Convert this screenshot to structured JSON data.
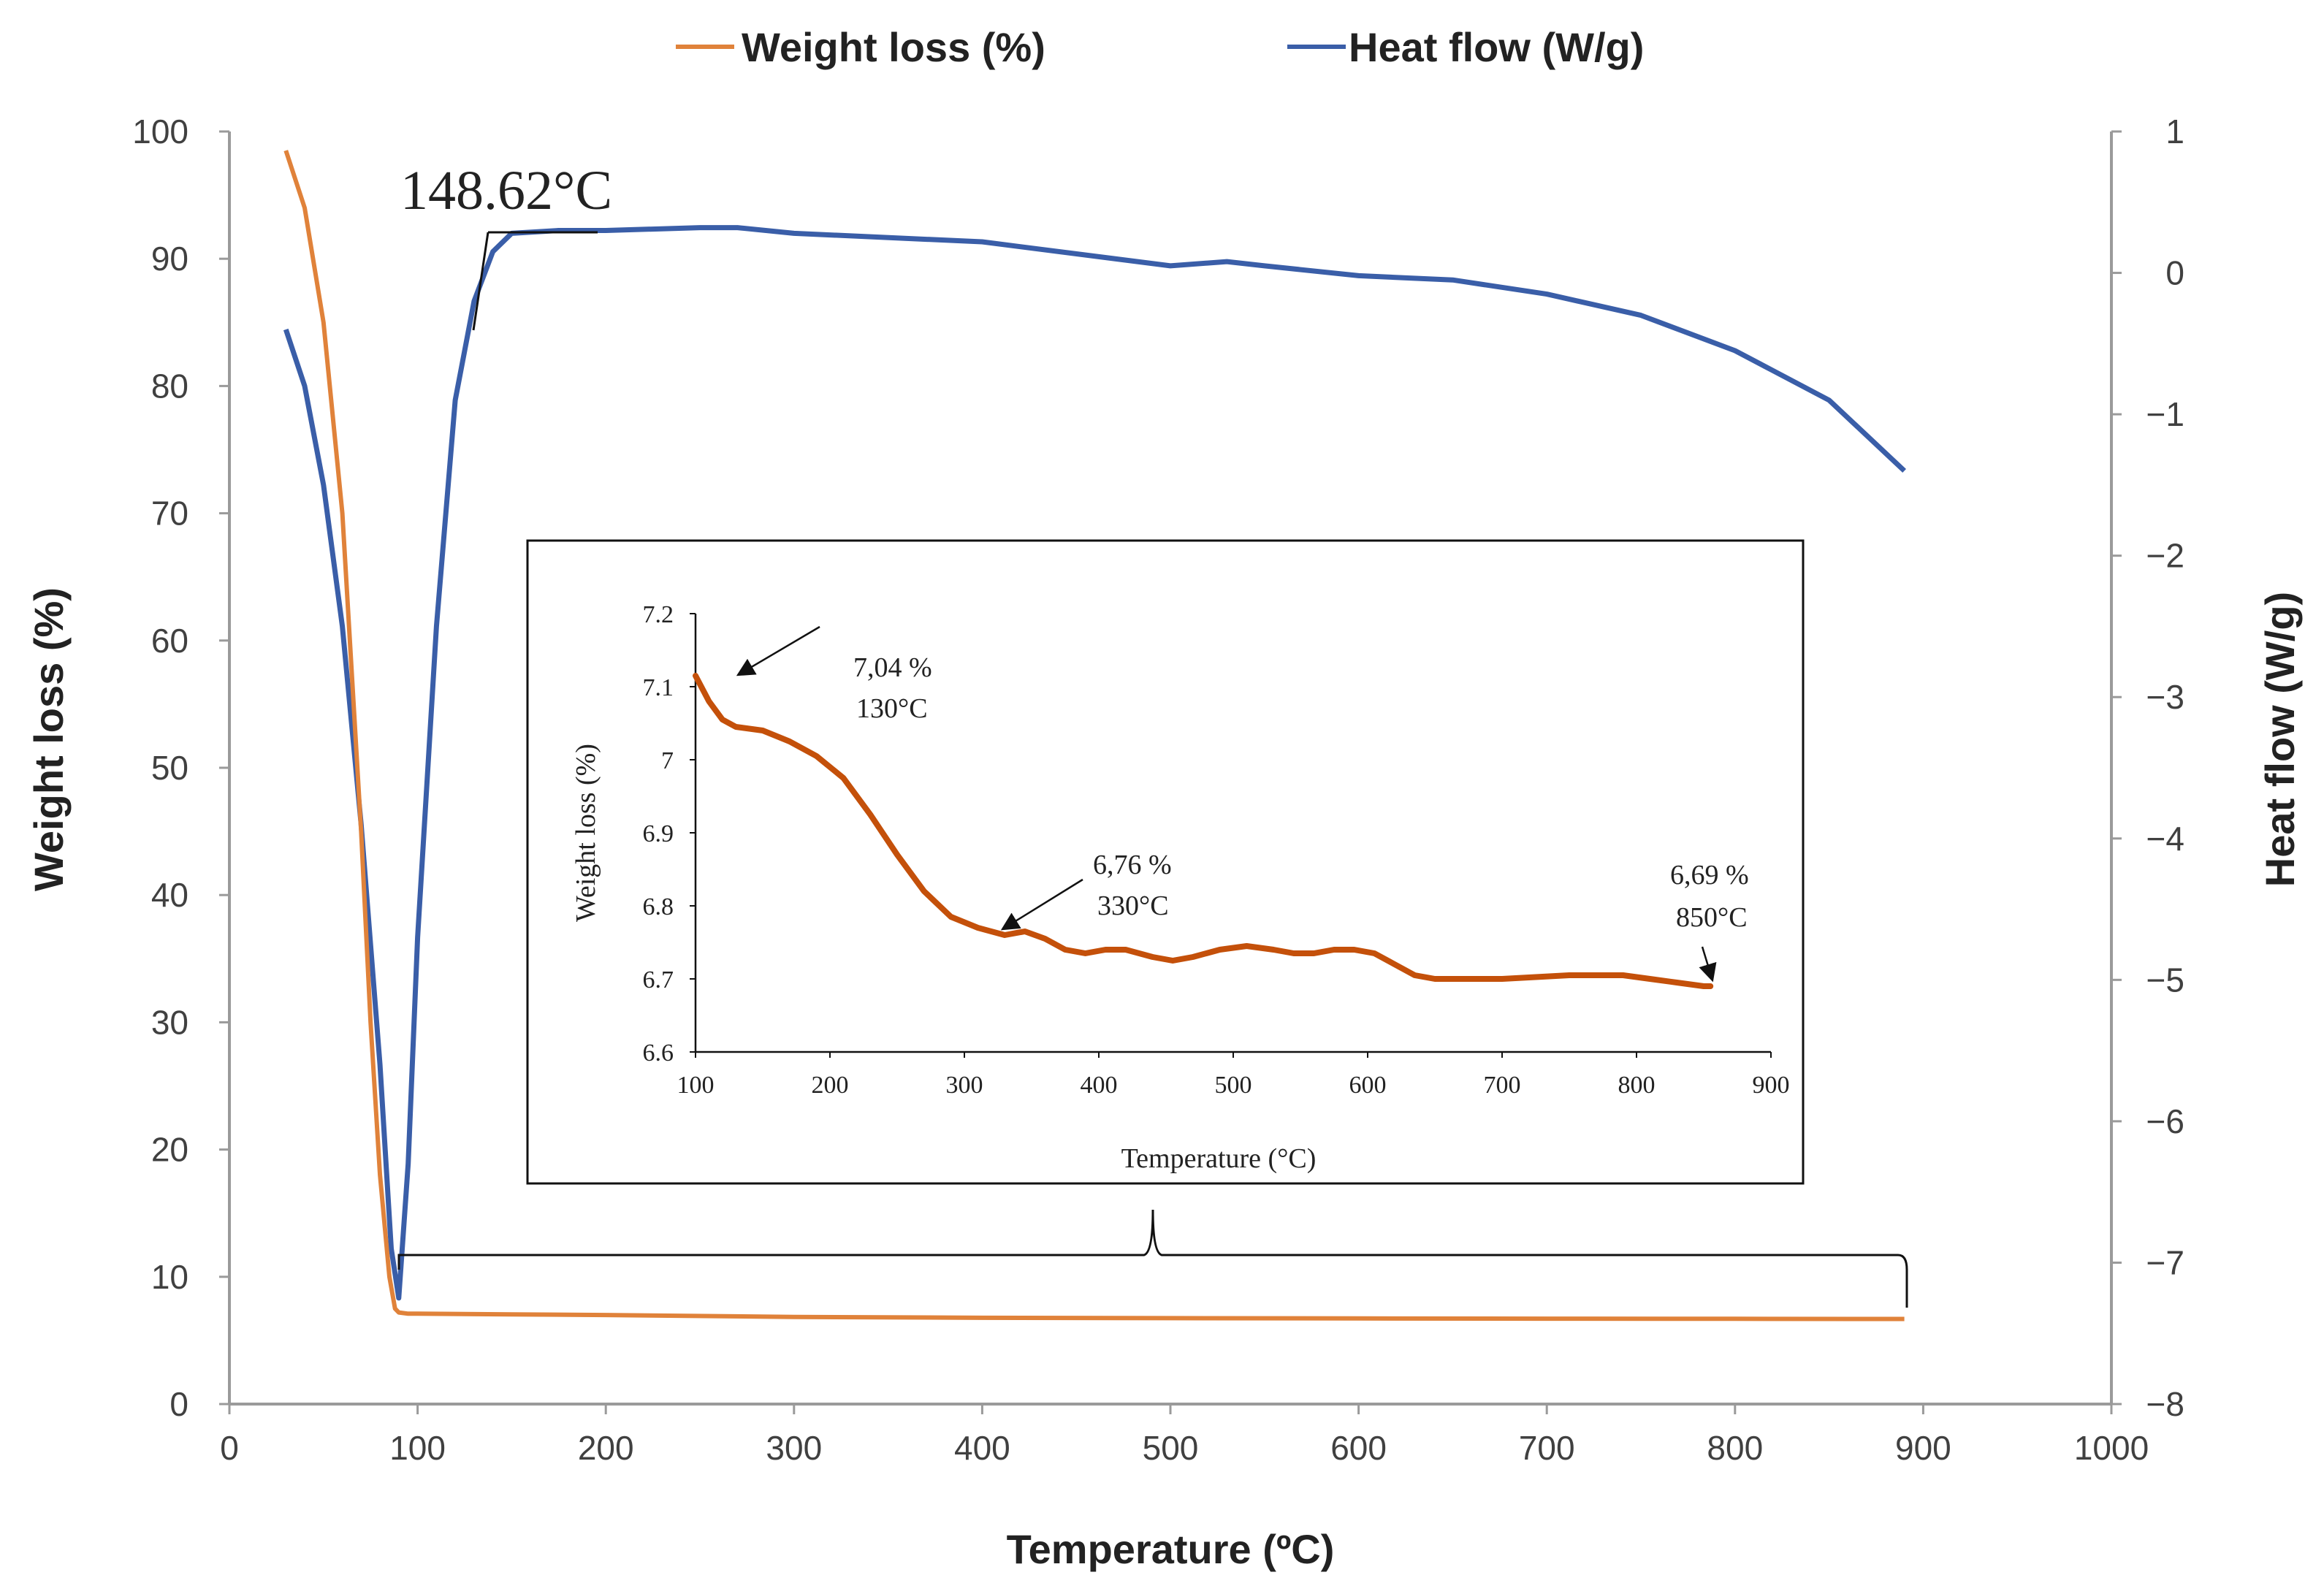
{
  "legend": {
    "weight_loss": "Weight loss (%)",
    "heat_flow": "Heat flow (W/g)"
  },
  "colors": {
    "weight_loss": "#E0823A",
    "heat_flow": "#3A5EA8",
    "inset_line": "#C4500A",
    "axis": "#9a9a9a"
  },
  "chart_data": [
    {
      "type": "line",
      "xlabel": "Temperature (ºC)",
      "ylabel": "Weight loss (%)",
      "y2label": "Heat flow (W/g)",
      "xlim": [
        0,
        1000
      ],
      "ylim": [
        0,
        100
      ],
      "y2lim": [
        -8,
        1
      ],
      "xticks": [
        "0",
        "100",
        "200",
        "300",
        "400",
        "500",
        "600",
        "700",
        "800",
        "900",
        "1000"
      ],
      "yticks": [
        "0",
        "10",
        "20",
        "30",
        "40",
        "50",
        "60",
        "70",
        "80",
        "90",
        "100"
      ],
      "y2ticks": [
        "−8",
        "−7",
        "−6",
        "−5",
        "−4",
        "−3",
        "−2",
        "−1",
        "0",
        "1"
      ],
      "grid": false,
      "legend_position": "top",
      "series": [
        {
          "name": "Weight loss (%)",
          "axis": "left",
          "x": [
            30,
            40,
            50,
            60,
            70,
            75,
            80,
            85,
            88,
            90,
            95,
            100,
            150,
            200,
            300,
            400,
            500,
            600,
            700,
            800,
            890
          ],
          "y": [
            98.5,
            94,
            85,
            70,
            45,
            30,
            18,
            10,
            7.5,
            7.2,
            7.1,
            7.1,
            7.05,
            7.0,
            6.85,
            6.78,
            6.75,
            6.73,
            6.71,
            6.7,
            6.69
          ]
        },
        {
          "name": "Heat flow (W/g)",
          "axis": "right",
          "x": [
            30,
            40,
            50,
            60,
            70,
            80,
            86,
            90,
            95,
            100,
            110,
            120,
            130,
            140,
            150,
            175,
            200,
            250,
            270,
            300,
            400,
            500,
            530,
            550,
            600,
            650,
            700,
            750,
            800,
            850,
            890
          ],
          "y": [
            -0.4,
            -0.8,
            -1.5,
            -2.5,
            -3.9,
            -5.6,
            -6.9,
            -7.25,
            -6.3,
            -4.7,
            -2.5,
            -0.9,
            -0.2,
            0.15,
            0.28,
            0.3,
            0.3,
            0.32,
            0.32,
            0.28,
            0.22,
            0.05,
            0.08,
            0.05,
            -0.02,
            -0.05,
            -0.15,
            -0.3,
            -0.55,
            -0.9,
            -1.4
          ]
        }
      ],
      "annotations": [
        {
          "text": "148.62°C",
          "x": 148.62
        }
      ]
    },
    {
      "type": "line",
      "xlabel": "Temperature (°C)",
      "ylabel": "Weight loss (%)",
      "xlim": [
        100,
        900
      ],
      "ylim": [
        6.6,
        7.2
      ],
      "xticks": [
        "100",
        "200",
        "300",
        "400",
        "500",
        "600",
        "700",
        "800",
        "900"
      ],
      "yticks": [
        "6.6",
        "6.7",
        "6.8",
        "6.9",
        "7",
        "7.1",
        "7.2"
      ],
      "grid": false,
      "series": [
        {
          "name": "Weight loss (%)",
          "x": [
            100,
            110,
            120,
            130,
            150,
            170,
            190,
            210,
            230,
            250,
            270,
            290,
            310,
            320,
            330,
            345,
            360,
            375,
            390,
            405,
            420,
            440,
            455,
            470,
            490,
            510,
            530,
            545,
            560,
            575,
            590,
            605,
            620,
            635,
            650,
            700,
            750,
            790,
            810,
            830,
            850,
            855
          ],
          "y": [
            7.115,
            7.08,
            7.055,
            7.045,
            7.04,
            7.025,
            7.005,
            6.975,
            6.925,
            6.87,
            6.82,
            6.785,
            6.77,
            6.765,
            6.76,
            6.765,
            6.755,
            6.74,
            6.735,
            6.74,
            6.74,
            6.73,
            6.725,
            6.73,
            6.74,
            6.745,
            6.74,
            6.735,
            6.735,
            6.74,
            6.74,
            6.735,
            6.72,
            6.705,
            6.7,
            6.7,
            6.705,
            6.705,
            6.7,
            6.695,
            6.69,
            6.69
          ]
        }
      ],
      "annotations": [
        {
          "line1": "7,04 %",
          "line2": "130°C",
          "x": 130,
          "y": 7.04
        },
        {
          "line1": "6,76 %",
          "line2": "330°C",
          "x": 330,
          "y": 6.76
        },
        {
          "line1": "6,69 %",
          "line2": "850°C",
          "x": 850,
          "y": 6.69
        }
      ]
    }
  ]
}
